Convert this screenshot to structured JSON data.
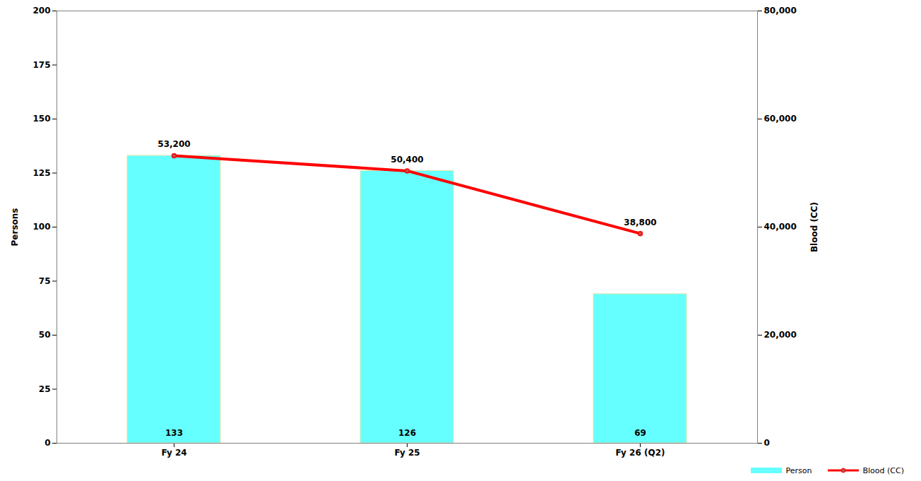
{
  "chart_data": {
    "type": "bar",
    "categories": [
      "Fy 24",
      "Fy 25",
      "Fy 26 (Q2)"
    ],
    "series": [
      {
        "name": "Person",
        "type": "bar",
        "color": "#66ffff",
        "values": [
          133,
          126,
          69
        ]
      },
      {
        "name": "Blood (CC)",
        "type": "line",
        "axis": "y2",
        "color": "#ff0000",
        "marker": "circle",
        "values": [
          53200,
          50400,
          38800
        ],
        "value_labels": [
          "53,200",
          "50,400",
          "38,800"
        ]
      }
    ],
    "ylabel": "Persons",
    "y2label": "Blood (CC)",
    "ylim": [
      0,
      200
    ],
    "yticks": [
      0,
      25,
      50,
      75,
      100,
      125,
      150,
      175,
      200
    ],
    "y2lim": [
      0,
      80000
    ],
    "y2ticks": [
      0,
      {
        "value": 20000,
        "label": "20,000"
      },
      {
        "value": 40000,
        "label": "40,000"
      },
      {
        "value": 60000,
        "label": "60,000"
      },
      {
        "value": 80000,
        "label": "80,000"
      }
    ],
    "data_labels": true,
    "grid": false,
    "legend": "bottom"
  }
}
